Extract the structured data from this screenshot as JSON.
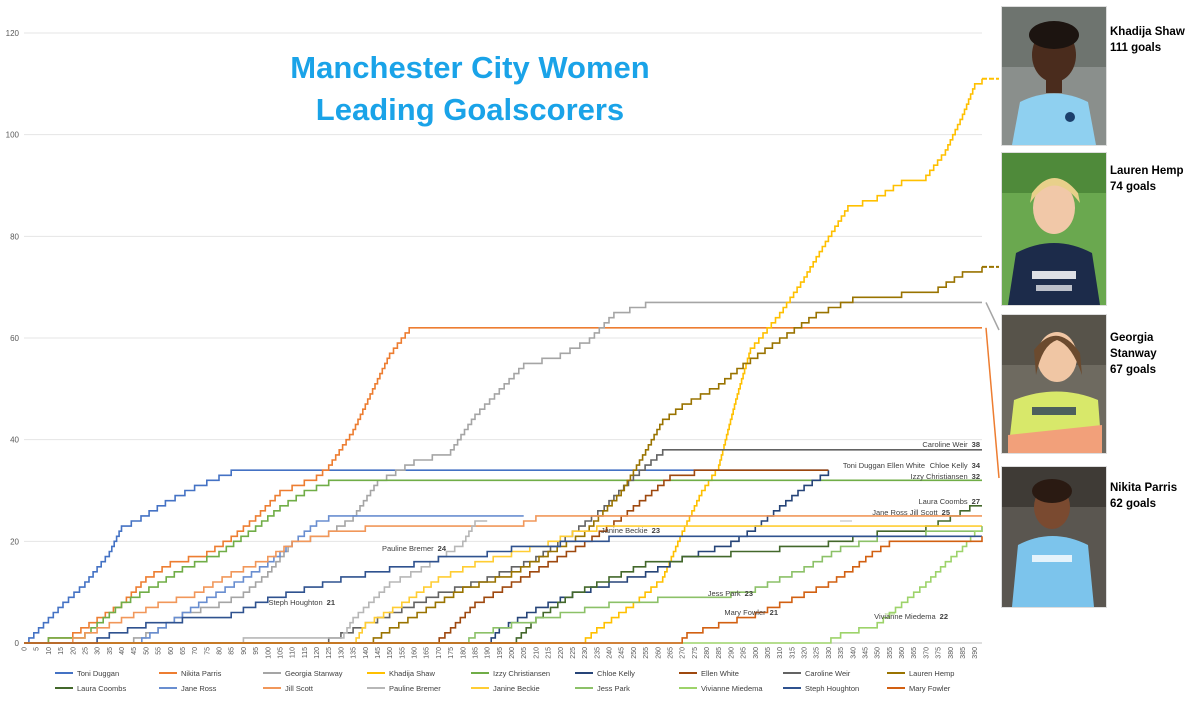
{
  "title_line1": "Manchester City Women",
  "title_line2": "Leading Goalscorers",
  "colors": {
    "title": "#1aa3e8",
    "Toni Duggan": "#4472c4",
    "Nikita Parris": "#ed7d31",
    "Georgia Stanway": "#a5a5a5",
    "Khadija Shaw": "#ffc000",
    "Izzy Christiansen": "#70ad47",
    "Chloe Kelly": "#264478",
    "Ellen White": "#9e480e",
    "Caroline Weir": "#636363",
    "Lauren Hemp": "#997300",
    "Laura Coombs": "#43682b",
    "Jane Ross": "#698ed0",
    "Jill Scott": "#f1975a",
    "Pauline Bremer": "#b7b7b7",
    "Janine Beckie": "#ffcd33",
    "Jess Park": "#8cc168",
    "Vivianne Miedema": "#9dd36a",
    "Steph Houghton": "#2f528f",
    "Mary Fowler": "#d26012"
  },
  "highlights": [
    {
      "name": "Khadija Shaw",
      "goals": "111 goals",
      "image": "khadija-shaw-photo"
    },
    {
      "name": "Lauren Hemp",
      "goals": "74 goals",
      "image": "lauren-hemp-photo"
    },
    {
      "name": "Georgia Stanway",
      "goals": "67 goals",
      "image": "georgia-stanway-photo"
    },
    {
      "name": "Nikita Parris",
      "goals": "62 goals",
      "image": "nikita-parris-photo"
    }
  ],
  "chart_data": {
    "type": "line",
    "xlabel": "",
    "ylabel": "",
    "xlim": [
      0,
      393
    ],
    "ylim": [
      0,
      120
    ],
    "y_ticks": [
      0,
      20,
      40,
      60,
      80,
      100,
      120
    ],
    "x_tick_start": 0,
    "x_tick_end": 390,
    "x_tick_step": 5,
    "grid": "horizontal",
    "legend": "bottom",
    "annotations": [
      {
        "text": "Caroline Weir",
        "value": "38"
      },
      {
        "text": "Toni Duggan    Ellen White",
        "value": ""
      },
      {
        "text": "Chloe Kelly",
        "value": "34"
      },
      {
        "text": "Izzy Christiansen",
        "value": "32"
      },
      {
        "text": "Laura Coombs",
        "value": "27"
      },
      {
        "text": "Jane Ross    Jill Scott",
        "value": "25"
      },
      {
        "text": "Janine Beckie",
        "value": "23"
      },
      {
        "text": "Pauline Bremer",
        "value": "24"
      },
      {
        "text": "Steph Houghton",
        "value": "21"
      },
      {
        "text": "Jess Park",
        "value": "23"
      },
      {
        "text": "Mary Fowler",
        "value": "21"
      },
      {
        "text": "Vivianne Miedema",
        "value": "22"
      }
    ],
    "series": [
      {
        "name": "Toni Duggan",
        "points": [
          [
            0,
            0
          ],
          [
            4,
            2
          ],
          [
            10,
            5
          ],
          [
            16,
            8
          ],
          [
            25,
            12
          ],
          [
            35,
            18
          ],
          [
            40,
            23
          ],
          [
            48,
            25
          ],
          [
            58,
            28
          ],
          [
            70,
            31
          ],
          [
            80,
            33
          ],
          [
            85,
            34
          ],
          [
            330,
            34
          ]
        ]
      },
      {
        "name": "Nikita Parris",
        "points": [
          [
            0,
            0
          ],
          [
            20,
            2
          ],
          [
            30,
            5
          ],
          [
            40,
            8
          ],
          [
            50,
            13
          ],
          [
            60,
            16
          ],
          [
            75,
            18
          ],
          [
            85,
            21
          ],
          [
            95,
            25
          ],
          [
            105,
            30
          ],
          [
            120,
            33
          ],
          [
            125,
            35
          ],
          [
            135,
            42
          ],
          [
            143,
            50
          ],
          [
            150,
            57
          ],
          [
            158,
            62
          ],
          [
            393,
            62
          ]
        ]
      },
      {
        "name": "Georgia Stanway",
        "points": [
          [
            0,
            0
          ],
          [
            38,
            0
          ],
          [
            45,
            1
          ],
          [
            55,
            3
          ],
          [
            65,
            6
          ],
          [
            80,
            8
          ],
          [
            90,
            10
          ],
          [
            100,
            14
          ],
          [
            110,
            20
          ],
          [
            125,
            22
          ],
          [
            135,
            25
          ],
          [
            145,
            32
          ],
          [
            160,
            36
          ],
          [
            175,
            38
          ],
          [
            185,
            45
          ],
          [
            195,
            50
          ],
          [
            205,
            55
          ],
          [
            220,
            57
          ],
          [
            232,
            60
          ],
          [
            242,
            65
          ],
          [
            255,
            67
          ],
          [
            393,
            67
          ]
        ]
      },
      {
        "name": "Khadija Shaw",
        "points": [
          [
            0,
            0
          ],
          [
            228,
            0
          ],
          [
            235,
            3
          ],
          [
            250,
            8
          ],
          [
            262,
            13
          ],
          [
            270,
            22
          ],
          [
            278,
            30
          ],
          [
            285,
            35
          ],
          [
            292,
            48
          ],
          [
            298,
            58
          ],
          [
            310,
            65
          ],
          [
            320,
            72
          ],
          [
            330,
            80
          ],
          [
            338,
            86
          ],
          [
            350,
            88
          ],
          [
            360,
            91
          ],
          [
            370,
            92
          ],
          [
            378,
            97
          ],
          [
            385,
            104
          ],
          [
            390,
            110
          ],
          [
            393,
            111
          ]
        ]
      },
      {
        "name": "Izzy Christiansen",
        "points": [
          [
            0,
            0
          ],
          [
            5,
            0
          ],
          [
            10,
            1
          ],
          [
            25,
            2
          ],
          [
            40,
            8
          ],
          [
            55,
            12
          ],
          [
            65,
            15
          ],
          [
            80,
            18
          ],
          [
            95,
            23
          ],
          [
            105,
            27
          ],
          [
            115,
            30
          ],
          [
            125,
            32
          ],
          [
            393,
            32
          ]
        ]
      },
      {
        "name": "Chloe Kelly",
        "points": [
          [
            0,
            0
          ],
          [
            190,
            0
          ],
          [
            195,
            3
          ],
          [
            210,
            7
          ],
          [
            225,
            10
          ],
          [
            240,
            12
          ],
          [
            255,
            14
          ],
          [
            270,
            17
          ],
          [
            290,
            20
          ],
          [
            300,
            23
          ],
          [
            310,
            27
          ],
          [
            320,
            31
          ],
          [
            330,
            34
          ]
        ]
      },
      {
        "name": "Ellen White",
        "points": [
          [
            0,
            0
          ],
          [
            168,
            0
          ],
          [
            175,
            3
          ],
          [
            185,
            8
          ],
          [
            200,
            12
          ],
          [
            215,
            16
          ],
          [
            230,
            20
          ],
          [
            245,
            25
          ],
          [
            255,
            29
          ],
          [
            265,
            33
          ],
          [
            275,
            34
          ],
          [
            330,
            34
          ]
        ]
      },
      {
        "name": "Caroline Weir",
        "points": [
          [
            0,
            0
          ],
          [
            120,
            0
          ],
          [
            130,
            2
          ],
          [
            150,
            6
          ],
          [
            170,
            10
          ],
          [
            190,
            13
          ],
          [
            210,
            17
          ],
          [
            225,
            22
          ],
          [
            238,
            27
          ],
          [
            250,
            33
          ],
          [
            262,
            38
          ],
          [
            393,
            38
          ]
        ]
      },
      {
        "name": "Lauren Hemp",
        "points": [
          [
            0,
            0
          ],
          [
            140,
            0
          ],
          [
            150,
            3
          ],
          [
            165,
            7
          ],
          [
            180,
            11
          ],
          [
            200,
            14
          ],
          [
            215,
            18
          ],
          [
            230,
            22
          ],
          [
            245,
            30
          ],
          [
            255,
            38
          ],
          [
            262,
            44
          ],
          [
            270,
            47
          ],
          [
            285,
            51
          ],
          [
            295,
            55
          ],
          [
            310,
            60
          ],
          [
            325,
            65
          ],
          [
            340,
            68
          ],
          [
            360,
            69
          ],
          [
            375,
            70
          ],
          [
            385,
            73
          ],
          [
            393,
            74
          ]
        ]
      },
      {
        "name": "Laura Coombs",
        "points": [
          [
            0,
            0
          ],
          [
            200,
            0
          ],
          [
            210,
            5
          ],
          [
            225,
            10
          ],
          [
            240,
            13
          ],
          [
            255,
            16
          ],
          [
            270,
            17
          ],
          [
            290,
            18
          ],
          [
            310,
            19
          ],
          [
            330,
            20
          ],
          [
            350,
            22
          ],
          [
            370,
            23
          ],
          [
            380,
            25
          ],
          [
            388,
            27
          ],
          [
            393,
            27
          ]
        ]
      },
      {
        "name": "Jane Ross",
        "points": [
          [
            0,
            0
          ],
          [
            45,
            0
          ],
          [
            55,
            3
          ],
          [
            65,
            6
          ],
          [
            75,
            9
          ],
          [
            90,
            13
          ],
          [
            100,
            16
          ],
          [
            110,
            20
          ],
          [
            120,
            24
          ],
          [
            125,
            25
          ],
          [
            205,
            25
          ]
        ]
      },
      {
        "name": "Jill Scott",
        "points": [
          [
            0,
            0
          ],
          [
            15,
            0
          ],
          [
            25,
            2
          ],
          [
            40,
            5
          ],
          [
            55,
            8
          ],
          [
            70,
            10
          ],
          [
            85,
            14
          ],
          [
            100,
            17
          ],
          [
            110,
            20
          ],
          [
            125,
            22
          ],
          [
            140,
            23
          ],
          [
            200,
            23
          ],
          [
            210,
            25
          ],
          [
            393,
            25
          ]
        ]
      },
      {
        "name": "Pauline Bremer",
        "points": [
          [
            0,
            0
          ],
          [
            85,
            0
          ],
          [
            90,
            1
          ],
          [
            130,
            1
          ],
          [
            135,
            5
          ],
          [
            150,
            12
          ],
          [
            163,
            15
          ],
          [
            170,
            17
          ],
          [
            180,
            20
          ],
          [
            185,
            24
          ],
          [
            190,
            24
          ]
        ]
      },
      {
        "name": "Janine Beckie",
        "points": [
          [
            0,
            0
          ],
          [
            135,
            0
          ],
          [
            140,
            4
          ],
          [
            155,
            8
          ],
          [
            170,
            13
          ],
          [
            185,
            16
          ],
          [
            200,
            18
          ],
          [
            215,
            20
          ],
          [
            225,
            22
          ],
          [
            235,
            23
          ],
          [
            393,
            23
          ]
        ]
      },
      {
        "name": "Jess Park",
        "points": [
          [
            0,
            0
          ],
          [
            180,
            0
          ],
          [
            185,
            2
          ],
          [
            200,
            4
          ],
          [
            220,
            6
          ],
          [
            240,
            8
          ],
          [
            260,
            9
          ],
          [
            280,
            9
          ],
          [
            300,
            11
          ],
          [
            320,
            15
          ],
          [
            335,
            19
          ],
          [
            350,
            21
          ],
          [
            370,
            22
          ],
          [
            393,
            23
          ]
        ]
      },
      {
        "name": "Vivianne Miedema",
        "points": [
          [
            0,
            0
          ],
          [
            327,
            0
          ],
          [
            335,
            2
          ],
          [
            350,
            4
          ],
          [
            360,
            8
          ],
          [
            370,
            12
          ],
          [
            378,
            16
          ],
          [
            385,
            19
          ],
          [
            390,
            22
          ],
          [
            393,
            22
          ]
        ]
      },
      {
        "name": "Steph Houghton",
        "points": [
          [
            0,
            0
          ],
          [
            25,
            0
          ],
          [
            35,
            2
          ],
          [
            50,
            4
          ],
          [
            65,
            5
          ],
          [
            85,
            6
          ],
          [
            100,
            9
          ],
          [
            115,
            11
          ],
          [
            130,
            13
          ],
          [
            150,
            15
          ],
          [
            170,
            17
          ],
          [
            190,
            18
          ],
          [
            200,
            19
          ],
          [
            220,
            20
          ],
          [
            240,
            21
          ],
          [
            393,
            21
          ]
        ]
      },
      {
        "name": "Mary Fowler",
        "points": [
          [
            0,
            0
          ],
          [
            268,
            0
          ],
          [
            272,
            2
          ],
          [
            285,
            4
          ],
          [
            300,
            6
          ],
          [
            315,
            9
          ],
          [
            330,
            12
          ],
          [
            340,
            15
          ],
          [
            348,
            18
          ],
          [
            355,
            20
          ],
          [
            393,
            21
          ]
        ]
      }
    ]
  }
}
